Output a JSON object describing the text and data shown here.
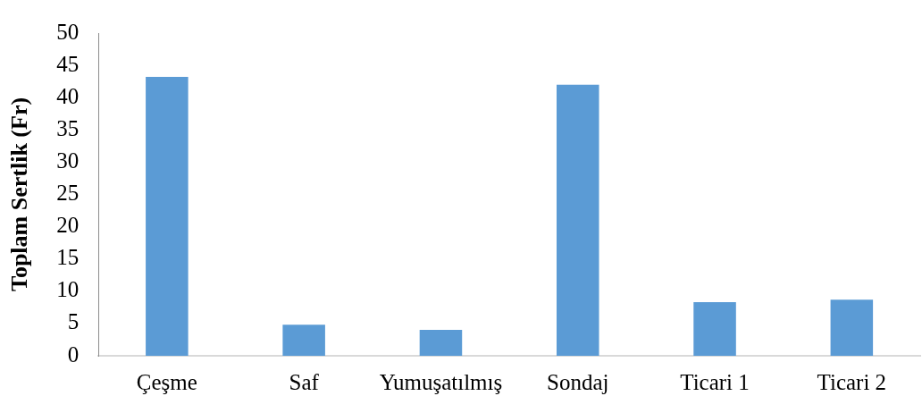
{
  "chart_data": {
    "type": "bar",
    "ylabel": "Toplam Sertlik (Fr)",
    "categories": [
      "Çeşme",
      "Saf",
      "Yumuşatılmış",
      "Sondaj",
      "Ticari 1",
      "Ticari 2"
    ],
    "values": [
      43.2,
      4.8,
      4.0,
      42.0,
      8.3,
      8.7
    ],
    "color": "#5b9bd5",
    "ylim": [
      0,
      50
    ],
    "yticks": [
      0,
      5,
      10,
      15,
      20,
      25,
      30,
      35,
      40,
      45,
      50
    ]
  }
}
